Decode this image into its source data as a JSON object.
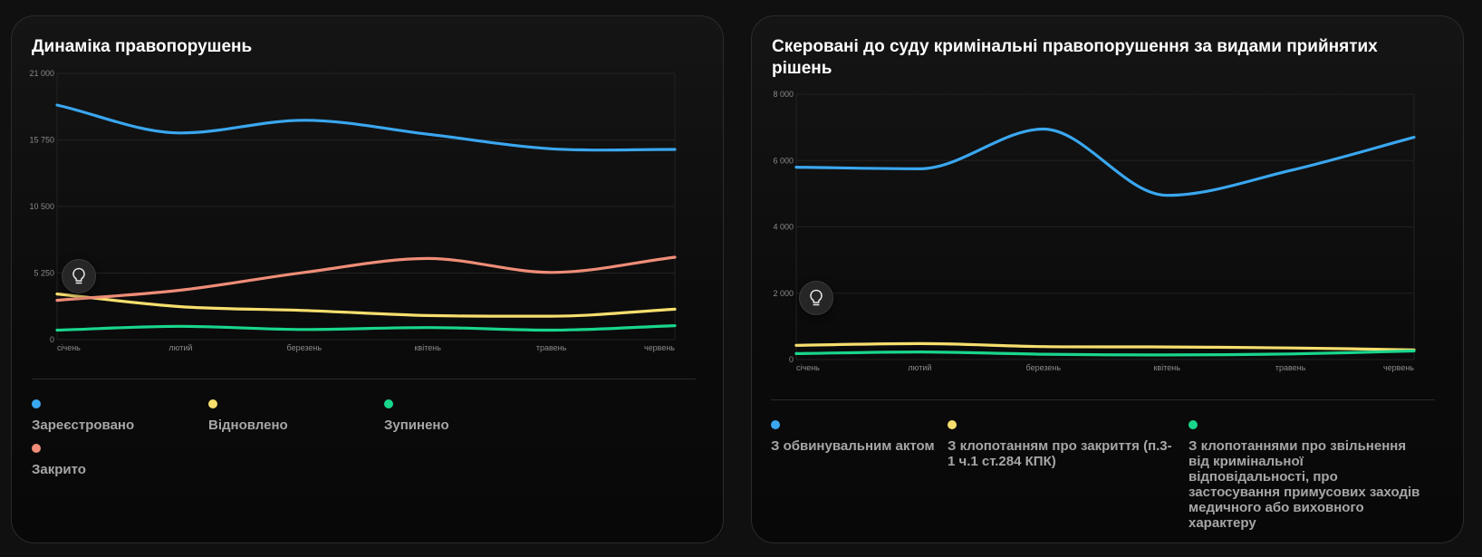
{
  "charts": [
    {
      "title": "Динаміка правопорушень",
      "hint_icon": "lightbulb-icon",
      "legend": [
        {
          "label": "Зареєстровано",
          "color": "#3aa7f0"
        },
        {
          "label": "Відновлено",
          "color": "#f7df6e"
        },
        {
          "label": "Зупинено",
          "color": "#19d68d"
        },
        {
          "label": "Закрито",
          "color": "#ef8d78"
        }
      ]
    },
    {
      "title": "Скеровані до суду кримінальні правопорушення за видами прийнятих рішень",
      "hint_icon": "lightbulb-icon",
      "legend": [
        {
          "label": "З обвинувальним актом",
          "color": "#3aa7f0"
        },
        {
          "label": "З клопотанням про закриття (п.3-1 ч.1 ст.284 КПК)",
          "color": "#f7df6e"
        },
        {
          "label": "З клопотаннями про звільнення від кримінальної відповідальності, про застосування примусових заходів медичного або виховного характеру",
          "color": "#19d68d"
        }
      ]
    }
  ],
  "chart_data": [
    {
      "type": "line",
      "title": "Динаміка правопорушень",
      "categories": [
        "січень",
        "лютий",
        "березень",
        "квітень",
        "травень",
        "червень"
      ],
      "yticks": [
        "0",
        "5 250",
        "10 500",
        "15 750",
        "21 000"
      ],
      "ylim": [
        0,
        21000
      ],
      "grid": true,
      "legend_position": "bottom",
      "series": [
        {
          "name": "Зареєстровано",
          "color": "#3aa7f0",
          "values": [
            18500,
            16300,
            17300,
            16200,
            15050,
            15000
          ]
        },
        {
          "name": "Відновлено",
          "color": "#f7df6e",
          "values": [
            3600,
            2600,
            2300,
            1900,
            1850,
            2400
          ]
        },
        {
          "name": "Зупинено",
          "color": "#19d68d",
          "values": [
            750,
            1050,
            800,
            950,
            750,
            1100
          ]
        },
        {
          "name": "Закрито",
          "color": "#ef8d78",
          "values": [
            3100,
            3900,
            5300,
            6400,
            5300,
            6500
          ]
        }
      ]
    },
    {
      "type": "line",
      "title": "Скеровані до суду кримінальні правопорушення за видами прийнятих рішень",
      "categories": [
        "січень",
        "лютий",
        "березень",
        "квітень",
        "травень",
        "червень"
      ],
      "yticks": [
        "0",
        "2 000",
        "4 000",
        "6 000",
        "8 000"
      ],
      "ylim": [
        0,
        8000
      ],
      "grid": true,
      "legend_position": "bottom",
      "series": [
        {
          "name": "З обвинувальним актом",
          "color": "#3aa7f0",
          "values": [
            5800,
            5750,
            6950,
            4950,
            5700,
            6700
          ]
        },
        {
          "name": "З клопотанням про закриття (п.3-1 ч.1 ст.284 КПК)",
          "color": "#f7df6e",
          "values": [
            430,
            480,
            390,
            380,
            350,
            290
          ]
        },
        {
          "name": "З клопотаннями про звільнення від кримінальної відповідальності, про застосування примусових заходів медичного або виховного характеру",
          "color": "#19d68d",
          "values": [
            180,
            230,
            160,
            140,
            170,
            260
          ]
        }
      ]
    }
  ]
}
